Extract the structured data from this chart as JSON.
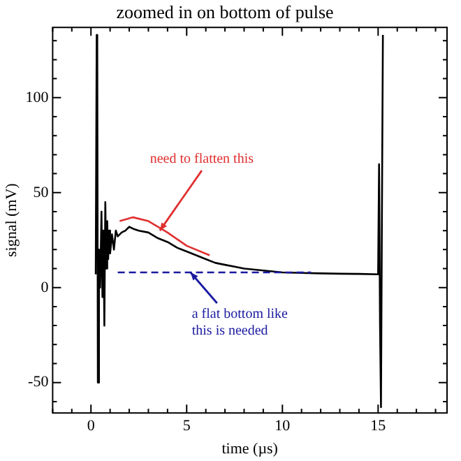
{
  "chart_data": {
    "type": "line",
    "title": "zoomed in on bottom of pulse",
    "xlabel": "time (µs)",
    "ylabel": "signal (mV)",
    "xlim": [
      -2,
      18.6
    ],
    "ylim": [
      -66,
      137
    ],
    "xticks": [
      {
        "value": -2,
        "label": null
      },
      {
        "value": -1,
        "label": null
      },
      0,
      {
        "value": 1,
        "label": null
      },
      {
        "value": 2,
        "label": null
      },
      {
        "value": 3,
        "label": null
      },
      {
        "value": 4,
        "label": null
      },
      5,
      {
        "value": 6,
        "label": null
      },
      {
        "value": 7,
        "label": null
      },
      {
        "value": 8,
        "label": null
      },
      {
        "value": 9,
        "label": null
      },
      10,
      {
        "value": 11,
        "label": null
      },
      {
        "value": 12,
        "label": null
      },
      {
        "value": 13,
        "label": null
      },
      {
        "value": 14,
        "label": null
      },
      15,
      {
        "value": 16,
        "label": null
      },
      {
        "value": 17,
        "label": null
      },
      {
        "value": 18,
        "label": null
      }
    ],
    "yticks": [
      {
        "value": -60,
        "label": null
      },
      -50,
      {
        "value": -40,
        "label": null
      },
      {
        "value": -30,
        "label": null
      },
      {
        "value": -20,
        "label": null
      },
      {
        "value": -10,
        "label": null
      },
      0,
      {
        "value": 10,
        "label": null
      },
      {
        "value": 20,
        "label": null
      },
      {
        "value": 30,
        "label": null
      },
      {
        "value": 40,
        "label": null
      },
      50,
      {
        "value": 60,
        "label": null
      },
      {
        "value": 70,
        "label": null
      },
      {
        "value": 80,
        "label": null
      },
      {
        "value": 90,
        "label": null
      },
      100,
      {
        "value": 110,
        "label": null
      },
      {
        "value": 120,
        "label": null
      },
      {
        "value": 130,
        "label": null
      }
    ],
    "grid": false,
    "legend": false,
    "marker": "none",
    "series": [
      {
        "color": "#000000",
        "x": [
          0.25,
          0.3,
          0.33,
          0.36,
          0.42,
          0.48,
          0.55,
          0.6,
          0.65,
          0.7,
          0.75,
          0.8,
          0.85,
          0.9,
          0.95,
          1.0,
          1.1,
          1.2,
          1.3,
          1.4,
          1.6,
          1.8,
          2.0,
          2.2,
          2.5,
          3.0,
          3.5,
          4.0,
          4.5,
          5.0,
          5.5,
          6.0,
          6.5,
          7.0,
          7.5,
          8.0,
          9.0,
          10.0,
          11,
          12,
          13,
          14,
          15.0,
          15.05,
          15.1,
          15.15,
          15.2,
          15.25
        ],
        "values": [
          7,
          133,
          130,
          -50,
          20,
          0,
          40,
          -5,
          30,
          -20,
          45,
          10,
          35,
          15,
          30,
          18,
          28,
          20,
          30,
          27,
          29,
          30,
          32,
          31,
          30,
          29,
          26,
          24,
          21,
          19,
          17,
          15,
          13,
          12,
          11,
          10,
          9,
          8,
          7.7,
          7.5,
          7.3,
          7.2,
          7,
          65,
          -20,
          -63,
          40,
          133
        ]
      },
      {
        "color": "#e03030",
        "x": [
          1.5,
          2.2,
          3,
          4,
          5,
          6.2
        ],
        "values": [
          35,
          37,
          35,
          29,
          22,
          17
        ]
      },
      {
        "color": "#1a1aa0",
        "line_style": "dashed",
        "x": [
          1.4,
          11.5
        ],
        "values": [
          8,
          8
        ]
      }
    ],
    "annotations": [
      {
        "text": "need to flatten this",
        "x": 3.6,
        "y": 30
      },
      {
        "text": "a flat bottom like\nthis is needed",
        "x": 5.2,
        "y": 8
      }
    ]
  }
}
